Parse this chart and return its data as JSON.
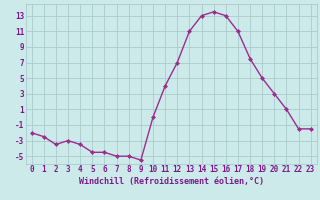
{
  "x": [
    0,
    1,
    2,
    3,
    4,
    5,
    6,
    7,
    8,
    9,
    10,
    11,
    12,
    13,
    14,
    15,
    16,
    17,
    18,
    19,
    20,
    21,
    22,
    23
  ],
  "y": [
    -2,
    -2.5,
    -3.5,
    -3,
    -3.5,
    -4.5,
    -4.5,
    -5,
    -5,
    -5.5,
    0,
    4,
    7,
    11,
    13,
    13.5,
    13,
    11,
    7.5,
    5,
    3,
    1,
    -1.5,
    -1.5
  ],
  "line_color": "#9b2d8f",
  "marker": "D",
  "marker_size": 2.0,
  "bg_color": "#cceaea",
  "grid_color": "#aacccc",
  "xlabel": "Windchill (Refroidissement éolien,°C)",
  "xlabel_color": "#7b1a8b",
  "xlabel_fontsize": 6.0,
  "xlim": [
    -0.5,
    23.5
  ],
  "ylim": [
    -6,
    14.5
  ],
  "yticks": [
    -5,
    -3,
    -1,
    1,
    3,
    5,
    7,
    9,
    11,
    13
  ],
  "xticks": [
    0,
    1,
    2,
    3,
    4,
    5,
    6,
    7,
    8,
    9,
    10,
    11,
    12,
    13,
    14,
    15,
    16,
    17,
    18,
    19,
    20,
    21,
    22,
    23
  ],
  "tick_color": "#7b1a8b",
  "tick_fontsize": 5.5,
  "line_width": 1.0
}
